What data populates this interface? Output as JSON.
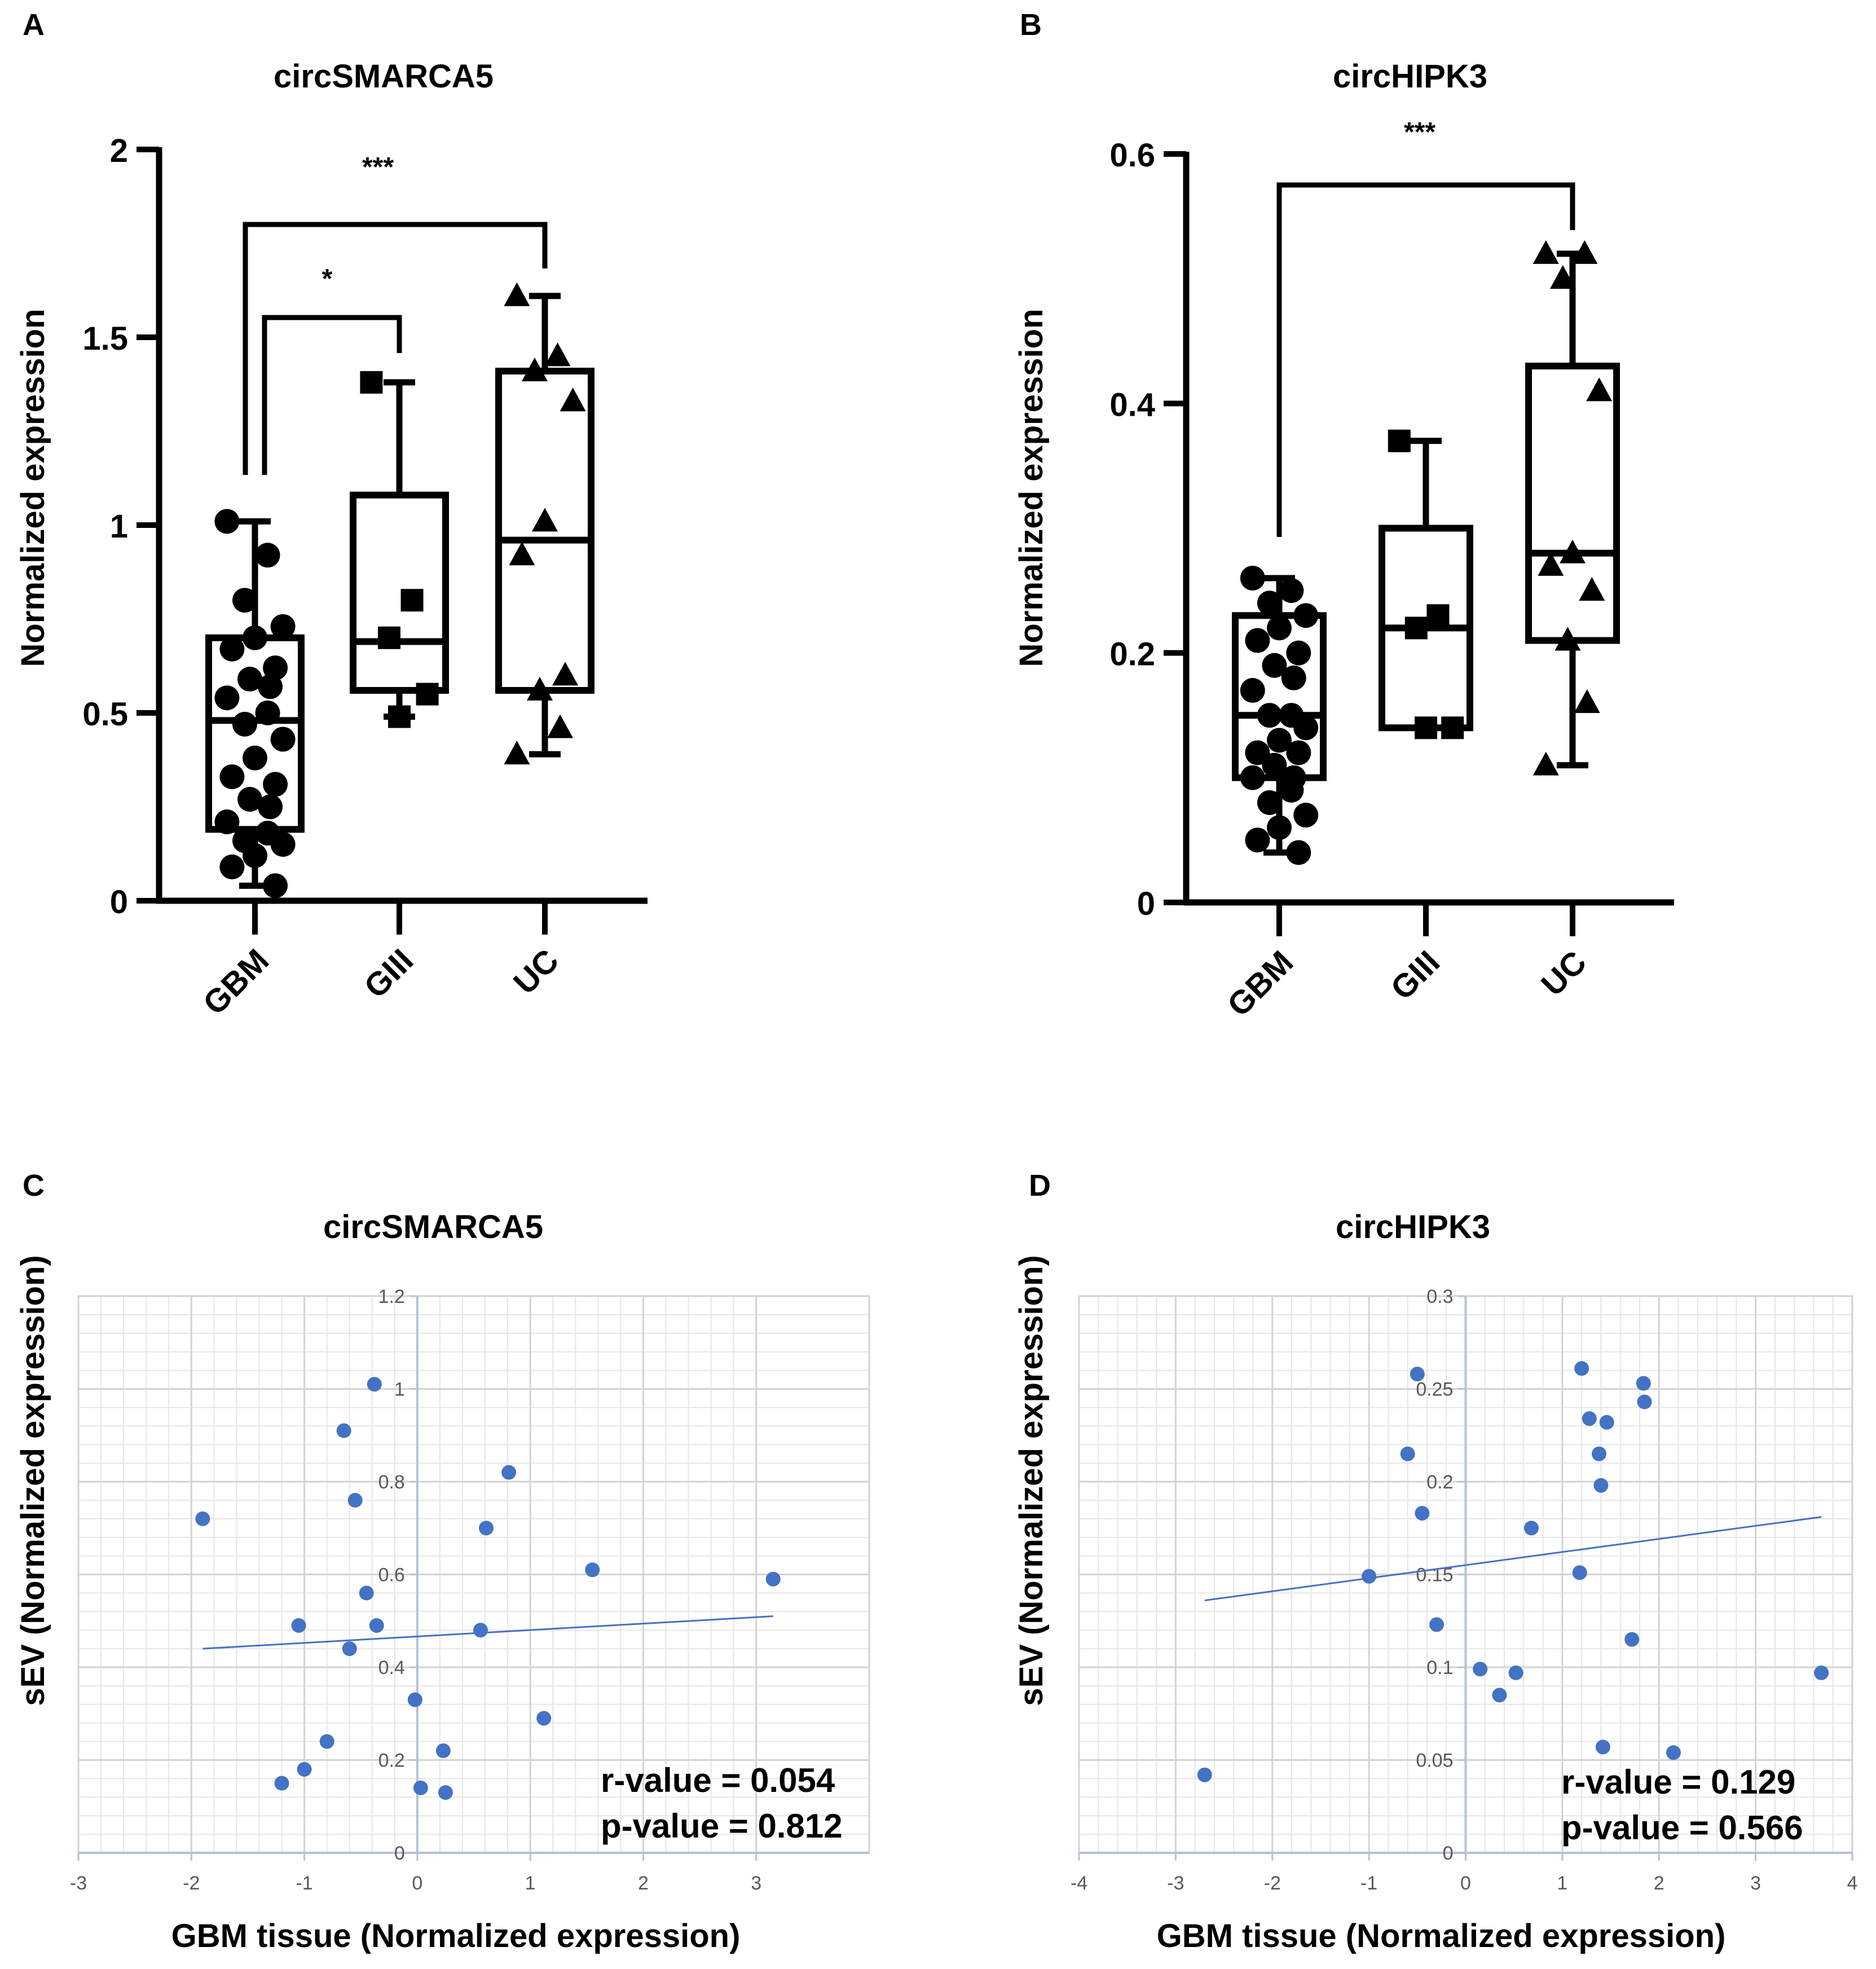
{
  "figure": {
    "panel_letters": [
      "A",
      "B",
      "C",
      "D"
    ]
  },
  "chart_data": [
    {
      "panel": "A",
      "type": "box",
      "title": "circSMARCA5",
      "ylabel": "Normalized expression",
      "ylim": [
        0,
        2
      ],
      "yticks": [
        0,
        0.5,
        1,
        1.5,
        2
      ],
      "ytick_labels": [
        "0",
        "0.5",
        "1",
        "1.5",
        "2"
      ],
      "categories": [
        "GBM",
        "GIII",
        "UC"
      ],
      "markers": [
        "circle",
        "square",
        "triangle"
      ],
      "boxes": [
        {
          "name": "GBM",
          "min": 0.04,
          "q1": 0.19,
          "median": 0.48,
          "q3": 0.7,
          "max": 1.01
        },
        {
          "name": "GIII",
          "min": 0.49,
          "q1": 0.56,
          "median": 0.69,
          "q3": 1.08,
          "max": 1.38
        },
        {
          "name": "UC",
          "min": 0.39,
          "q1": 0.56,
          "median": 0.96,
          "q3": 1.41,
          "max": 1.61
        }
      ],
      "points": [
        [
          1.01,
          0.92,
          0.8,
          0.73,
          0.7,
          0.67,
          0.62,
          0.59,
          0.57,
          0.54,
          0.5,
          0.47,
          0.43,
          0.38,
          0.33,
          0.31,
          0.27,
          0.25,
          0.21,
          0.18,
          0.16,
          0.15,
          0.12,
          0.09,
          0.04
        ],
        [
          1.38,
          0.8,
          0.7,
          0.55,
          0.49
        ],
        [
          1.61,
          1.45,
          1.41,
          1.33,
          1.01,
          0.92,
          0.6,
          0.56,
          0.46,
          0.39
        ]
      ],
      "comparisons": [
        {
          "from": "GBM",
          "to": "GIII",
          "label": "*"
        },
        {
          "from": "GBM",
          "to": "UC",
          "label": "***"
        }
      ]
    },
    {
      "panel": "B",
      "type": "box",
      "title": "circHIPK3",
      "ylabel": "Normalized expression",
      "ylim": [
        0,
        0.6
      ],
      "yticks": [
        0,
        0.2,
        0.4,
        0.6
      ],
      "ytick_labels": [
        "0",
        "0.2",
        "0.4",
        "0.6"
      ],
      "categories": [
        "GBM",
        "GIII",
        "UC"
      ],
      "markers": [
        "circle",
        "square",
        "triangle"
      ],
      "boxes": [
        {
          "name": "GBM",
          "min": 0.04,
          "q1": 0.1,
          "median": 0.15,
          "q3": 0.23,
          "max": 0.26
        },
        {
          "name": "GIII",
          "min": 0.14,
          "q1": 0.14,
          "median": 0.22,
          "q3": 0.3,
          "max": 0.37
        },
        {
          "name": "UC",
          "min": 0.11,
          "q1": 0.21,
          "median": 0.28,
          "q3": 0.43,
          "max": 0.52
        }
      ],
      "points": [
        [
          0.26,
          0.25,
          0.24,
          0.23,
          0.22,
          0.21,
          0.2,
          0.19,
          0.18,
          0.17,
          0.15,
          0.15,
          0.14,
          0.13,
          0.12,
          0.12,
          0.11,
          0.1,
          0.1,
          0.09,
          0.08,
          0.07,
          0.06,
          0.05,
          0.04
        ],
        [
          0.37,
          0.23,
          0.22,
          0.14,
          0.14
        ],
        [
          0.52,
          0.52,
          0.5,
          0.41,
          0.28,
          0.27,
          0.25,
          0.21,
          0.16,
          0.11
        ]
      ],
      "comparisons": [
        {
          "from": "GBM",
          "to": "UC",
          "label": "***"
        }
      ]
    },
    {
      "panel": "C",
      "type": "scatter",
      "title": "circSMARCA5",
      "xlabel": "GBM tissue (Normalized expression)",
      "ylabel": "sEV (Normalized expression)",
      "xlim": [
        -3,
        4
      ],
      "ylim": [
        0,
        1.2
      ],
      "xticks": [
        -3,
        -2,
        -1,
        0,
        1,
        2,
        3
      ],
      "xtick_labels": [
        "-3",
        "-2",
        "-1",
        "0",
        "1",
        "2",
        "3"
      ],
      "yticks": [
        0,
        0.2,
        0.4,
        0.6,
        0.8,
        1,
        1.2
      ],
      "ytick_labels": [
        "0",
        "0.2",
        "0.4",
        "0.6",
        "0.8",
        "1",
        "1.2"
      ],
      "x": [
        -1.9,
        -1.05,
        -1.2,
        -1.0,
        -0.8,
        -0.65,
        -0.55,
        -0.6,
        -0.45,
        -0.38,
        -0.36,
        -0.02,
        0.03,
        0.23,
        0.25,
        0.56,
        0.61,
        0.81,
        1.12,
        1.55,
        3.15
      ],
      "y": [
        0.72,
        0.49,
        0.15,
        0.18,
        0.24,
        0.91,
        0.76,
        0.44,
        0.56,
        1.01,
        0.49,
        0.33,
        0.14,
        0.22,
        0.13,
        0.48,
        0.7,
        0.82,
        0.29,
        0.61,
        0.59
      ],
      "trendline": {
        "x": [
          -1.9,
          3.15
        ],
        "y": [
          0.44,
          0.51
        ]
      },
      "annotations": [
        "r-value = 0.054",
        "p-value = 0.812"
      ]
    },
    {
      "panel": "D",
      "type": "scatter",
      "title": "circHIPK3",
      "xlabel": "GBM tissue (Normalized expression)",
      "ylabel": "sEV (Normalized expression)",
      "xlim": [
        -4,
        4
      ],
      "ylim": [
        0,
        0.3
      ],
      "xticks": [
        -4,
        -3,
        -2,
        -1,
        0,
        1,
        2,
        3,
        4
      ],
      "xtick_labels": [
        "-4",
        "-3",
        "-2",
        "-1",
        "0",
        "1",
        "2",
        "3",
        "4"
      ],
      "yticks": [
        0,
        0.05,
        0.1,
        0.15,
        0.2,
        0.25,
        0.3
      ],
      "ytick_labels": [
        "0",
        "0.05",
        "0.1",
        "0.15",
        "0.2",
        "0.25",
        "0.3"
      ],
      "x": [
        -2.7,
        -1.0,
        -0.6,
        -0.5,
        -0.45,
        -0.3,
        0.15,
        0.35,
        0.52,
        0.68,
        1.18,
        1.2,
        1.28,
        1.38,
        1.4,
        1.42,
        1.46,
        1.72,
        1.84,
        1.85,
        2.15,
        3.68
      ],
      "y": [
        0.042,
        0.149,
        0.215,
        0.258,
        0.183,
        0.123,
        0.099,
        0.085,
        0.097,
        0.175,
        0.151,
        0.261,
        0.234,
        0.215,
        0.198,
        0.057,
        0.232,
        0.115,
        0.253,
        0.243,
        0.054,
        0.097
      ],
      "trendline": {
        "x": [
          -2.7,
          3.68
        ],
        "y": [
          0.136,
          0.181
        ]
      },
      "annotations": [
        "r-value = 0.129",
        "p-value = 0.566"
      ]
    }
  ]
}
